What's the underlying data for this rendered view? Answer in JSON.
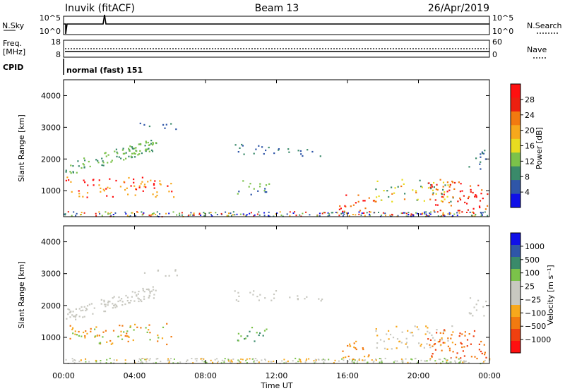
{
  "header": {
    "station": "Inuvik (fitACF)",
    "beam": "Beam 13",
    "date": "26/Apr/2019"
  },
  "strips": {
    "nsky_label": "N.Sky",
    "nsky_ticks": [
      "10^5",
      "10^0"
    ],
    "nsearch_label": "N.Search",
    "nsearch_ticks": [
      "10^5",
      "10^0"
    ],
    "freq_label": "Freq.",
    "freq_unit": "[MHz]",
    "freq_ticks": [
      "18",
      "8"
    ],
    "nave_label": "Nave",
    "nave_ticks": [
      "60",
      "0"
    ],
    "cpid_label": "CPID",
    "cpid_value": "normal (fast) 151"
  },
  "colors": {
    "power_scale": [
      "#1010e8",
      "#2f56a8",
      "#3a8a6a",
      "#7bc24a",
      "#e8dc20",
      "#f7a81c",
      "#f27a10",
      "#ec2010",
      "#ff1010"
    ],
    "velocity_scale": [
      "#ff1010",
      "#f04010",
      "#f27a10",
      "#f7a81c",
      "#c8c8c0",
      "#c8c8c0",
      "#7bc24a",
      "#3a8a6a",
      "#2f56a8",
      "#1010e8"
    ]
  },
  "chart_data": [
    {
      "type": "heatmap",
      "panel": "power",
      "ylabel": "Slant Range [km]",
      "y_ticks": [
        "1000",
        "2000",
        "3000",
        "4000"
      ],
      "ylim": [
        180,
        4500
      ],
      "x_ticks": [
        "00:00",
        "04:00",
        "08:00",
        "12:00",
        "16:00",
        "20:00",
        "00:00"
      ],
      "xlim": [
        0,
        24
      ],
      "colorbar": {
        "label": "Power [dB]",
        "ticks": [
          "4",
          "8",
          "12",
          "16",
          "20",
          "24",
          "28"
        ],
        "range": [
          0,
          30
        ]
      }
    },
    {
      "type": "heatmap",
      "panel": "velocity",
      "xlabel": "Time UT",
      "ylabel": "Slant Range [km]",
      "y_ticks": [
        "1000",
        "2000",
        "3000",
        "4000"
      ],
      "ylim": [
        180,
        4500
      ],
      "x_ticks": [
        "00:00",
        "04:00",
        "08:00",
        "12:00",
        "16:00",
        "20:00",
        "00:00"
      ],
      "xlim": [
        0,
        24
      ],
      "colorbar": {
        "label": "Velocity [m s⁻¹]",
        "ticks": [
          "1000",
          "500",
          "100",
          "25",
          "−25",
          "−100",
          "−500",
          "−1000"
        ]
      }
    }
  ]
}
